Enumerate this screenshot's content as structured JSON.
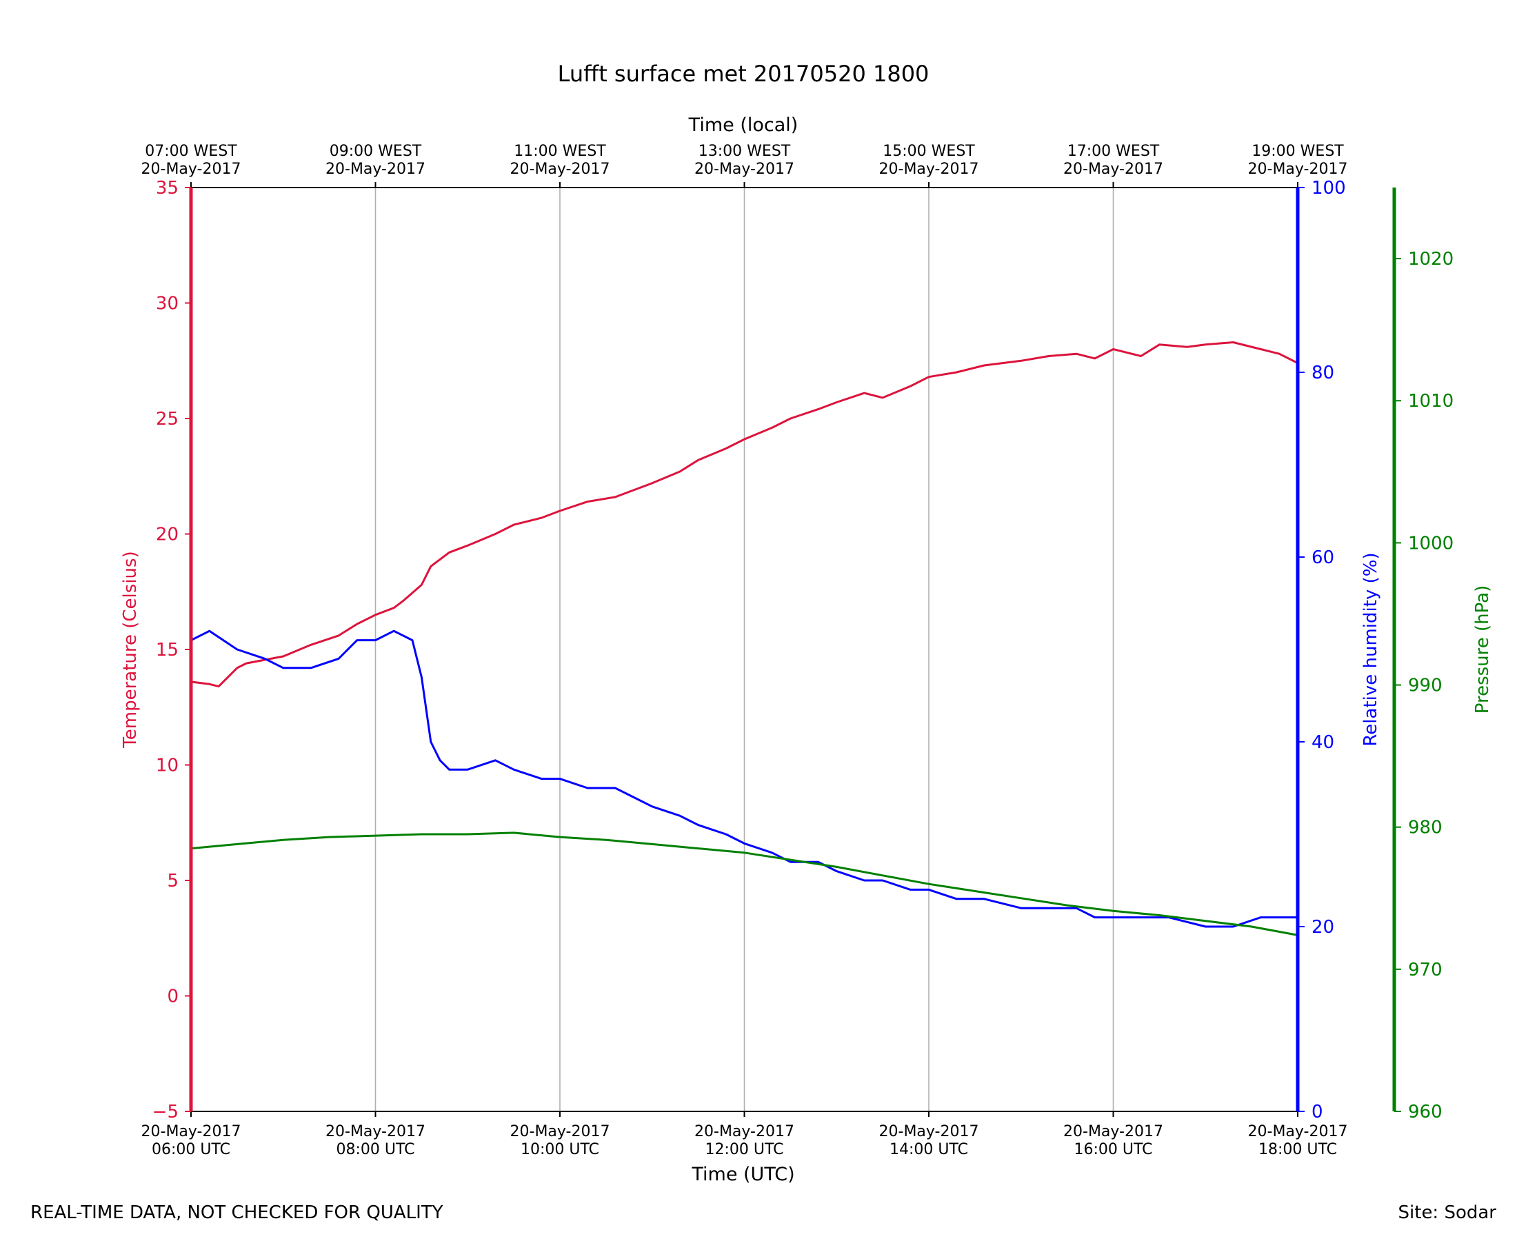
{
  "chart_data": {
    "type": "line",
    "title": "Lufft surface met 20170520 1800",
    "xlabel": "Time (UTC)",
    "xlabel_top": "Time (local)",
    "x_range_hours": [
      6,
      18
    ],
    "x_ticks_bottom": [
      {
        "hour": 6,
        "line1": "20-May-2017",
        "line2": "06:00 UTC"
      },
      {
        "hour": 8,
        "line1": "20-May-2017",
        "line2": "08:00 UTC"
      },
      {
        "hour": 10,
        "line1": "20-May-2017",
        "line2": "10:00 UTC"
      },
      {
        "hour": 12,
        "line1": "20-May-2017",
        "line2": "12:00 UTC"
      },
      {
        "hour": 14,
        "line1": "20-May-2017",
        "line2": "14:00 UTC"
      },
      {
        "hour": 16,
        "line1": "20-May-2017",
        "line2": "16:00 UTC"
      },
      {
        "hour": 18,
        "line1": "20-May-2017",
        "line2": "18:00 UTC"
      }
    ],
    "x_ticks_top": [
      {
        "hour": 6,
        "line1": "07:00 WEST",
        "line2": "20-May-2017"
      },
      {
        "hour": 8,
        "line1": "09:00 WEST",
        "line2": "20-May-2017"
      },
      {
        "hour": 10,
        "line1": "11:00 WEST",
        "line2": "20-May-2017"
      },
      {
        "hour": 12,
        "line1": "13:00 WEST",
        "line2": "20-May-2017"
      },
      {
        "hour": 14,
        "line1": "15:00 WEST",
        "line2": "20-May-2017"
      },
      {
        "hour": 16,
        "line1": "17:00 WEST",
        "line2": "20-May-2017"
      },
      {
        "hour": 18,
        "line1": "19:00 WEST",
        "line2": "20-May-2017"
      }
    ],
    "axes": {
      "temperature": {
        "label": "Temperature (Celsius)",
        "ylim": [
          -5,
          35
        ],
        "ticks": [
          -5,
          0,
          5,
          10,
          15,
          20,
          25,
          30,
          35
        ],
        "tick_labels": [
          "−5",
          "0",
          "5",
          "10",
          "15",
          "20",
          "25",
          "30",
          "35"
        ],
        "color": "#dc143c"
      },
      "humidity": {
        "label": "Relative humidity (%)",
        "ylim": [
          0,
          100
        ],
        "ticks": [
          0,
          20,
          40,
          60,
          80,
          100
        ],
        "tick_labels": [
          "0",
          "20",
          "40",
          "60",
          "80",
          "100"
        ],
        "color": "#0000ff"
      },
      "pressure": {
        "label": "Pressure (hPa)",
        "ylim": [
          960,
          1025
        ],
        "ticks": [
          960,
          970,
          980,
          990,
          1000,
          1010,
          1020
        ],
        "tick_labels": [
          "960",
          "970",
          "980",
          "990",
          "1000",
          "1010",
          "1020"
        ],
        "color": "#008000"
      }
    },
    "series": [
      {
        "name": "Temperature",
        "axis": "temperature",
        "color": "#dc143c",
        "x": [
          6.0,
          6.2,
          6.3,
          6.5,
          6.6,
          7.0,
          7.3,
          7.6,
          7.8,
          8.0,
          8.2,
          8.3,
          8.5,
          8.6,
          8.8,
          9.0,
          9.3,
          9.5,
          9.8,
          10.0,
          10.3,
          10.6,
          10.8,
          11.0,
          11.3,
          11.5,
          11.8,
          12.0,
          12.3,
          12.5,
          12.8,
          13.0,
          13.3,
          13.5,
          13.8,
          14.0,
          14.3,
          14.6,
          15.0,
          15.3,
          15.6,
          15.8,
          16.0,
          16.3,
          16.5,
          16.8,
          17.0,
          17.3,
          17.6,
          17.8,
          18.0
        ],
        "y": [
          13.6,
          13.5,
          13.4,
          14.2,
          14.4,
          14.7,
          15.2,
          15.6,
          16.1,
          16.5,
          16.8,
          17.1,
          17.8,
          18.6,
          19.2,
          19.5,
          20.0,
          20.4,
          20.7,
          21.0,
          21.4,
          21.6,
          21.9,
          22.2,
          22.7,
          23.2,
          23.7,
          24.1,
          24.6,
          25.0,
          25.4,
          25.7,
          26.1,
          25.9,
          26.4,
          26.8,
          27.0,
          27.3,
          27.5,
          27.7,
          27.8,
          27.6,
          28.0,
          27.7,
          28.2,
          28.1,
          28.2,
          28.3,
          28.0,
          27.8,
          27.4
        ]
      },
      {
        "name": "Relative humidity",
        "axis": "humidity",
        "color": "#0000ff",
        "x": [
          6.0,
          6.2,
          6.5,
          6.8,
          7.0,
          7.3,
          7.6,
          7.8,
          8.0,
          8.2,
          8.4,
          8.5,
          8.6,
          8.7,
          8.8,
          9.0,
          9.3,
          9.5,
          9.8,
          10.0,
          10.3,
          10.6,
          10.8,
          11.0,
          11.3,
          11.5,
          11.8,
          12.0,
          12.3,
          12.5,
          12.8,
          13.0,
          13.3,
          13.5,
          13.8,
          14.0,
          14.3,
          14.6,
          15.0,
          15.3,
          15.6,
          15.8,
          16.0,
          16.3,
          16.6,
          17.0,
          17.3,
          17.6,
          17.8,
          18.0
        ],
        "y": [
          51,
          52,
          50,
          49,
          48,
          48,
          49,
          51,
          51,
          52,
          51,
          47,
          40,
          38,
          37,
          37,
          38,
          37,
          36,
          36,
          35,
          35,
          34,
          33,
          32,
          31,
          30,
          29,
          28,
          27,
          27,
          26,
          25,
          25,
          24,
          24,
          23,
          23,
          22,
          22,
          22,
          21,
          21,
          21,
          21,
          20,
          20,
          21,
          21,
          21
        ]
      },
      {
        "name": "Pressure",
        "axis": "pressure",
        "color": "#008000",
        "x": [
          6.0,
          6.5,
          7.0,
          7.5,
          8.0,
          8.5,
          9.0,
          9.5,
          10.0,
          10.5,
          11.0,
          11.5,
          12.0,
          12.5,
          13.0,
          13.5,
          14.0,
          14.5,
          15.0,
          15.5,
          16.0,
          16.5,
          17.0,
          17.5,
          18.0
        ],
        "y": [
          978.5,
          978.8,
          979.1,
          979.3,
          979.4,
          979.5,
          979.5,
          979.6,
          979.3,
          979.1,
          978.8,
          978.5,
          978.2,
          977.7,
          977.2,
          976.6,
          976.0,
          975.5,
          975.0,
          974.5,
          974.1,
          973.8,
          973.4,
          973.0,
          972.4
        ]
      }
    ]
  },
  "footer": {
    "left": "REAL-TIME DATA, NOT CHECKED FOR QUALITY",
    "right": "Site: Sodar"
  }
}
